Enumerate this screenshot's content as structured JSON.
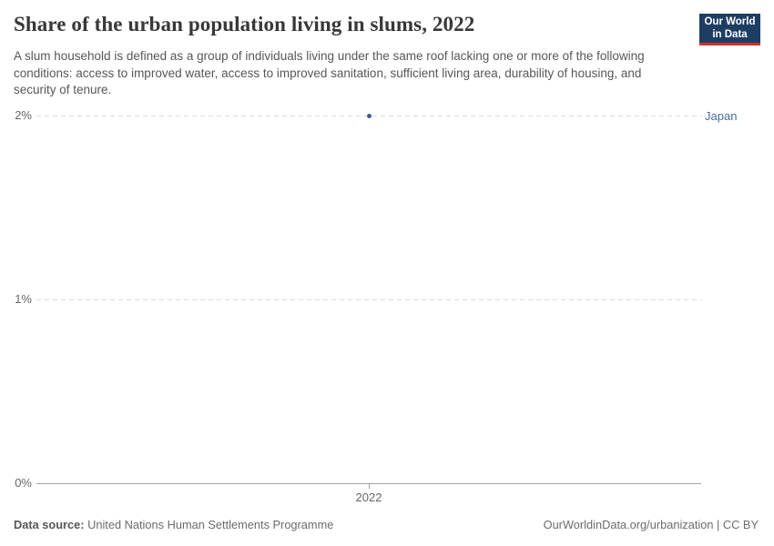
{
  "header": {
    "title": "Share of the urban population living in slums, 2022",
    "subtitle": "A slum household is defined as a group of individuals living under the same roof lacking one or more of the following conditions: access to improved water, access to improved sanitation, sufficient living area, durability of housing, and security of tenure.",
    "logo": {
      "line1": "Our World",
      "line2": "in Data",
      "bg_color": "#1d3d63",
      "stripe_color": "#cf322a"
    }
  },
  "chart_data": {
    "type": "scatter",
    "title": "Share of the urban population living in slums, 2022",
    "series": [
      {
        "name": "Japan",
        "x": [
          2022
        ],
        "values": [
          2.0
        ]
      }
    ],
    "xlabel": "",
    "ylabel": "",
    "x_tick_labels": [
      "2022"
    ],
    "y_tick_labels": [
      "0%",
      "1%",
      "2%"
    ],
    "y_tick_values": [
      0,
      1,
      2
    ],
    "ylim": [
      0,
      2
    ],
    "grid": "horizontal-dashed",
    "legend_position": "entity-label-right",
    "point_color": "#3d5c8f",
    "label_color": "#4c6a9c"
  },
  "footer": {
    "source_label": "Data source:",
    "source_value": "United Nations Human Settlements Programme",
    "attribution": "OurWorldinData.org/urbanization | CC BY"
  }
}
